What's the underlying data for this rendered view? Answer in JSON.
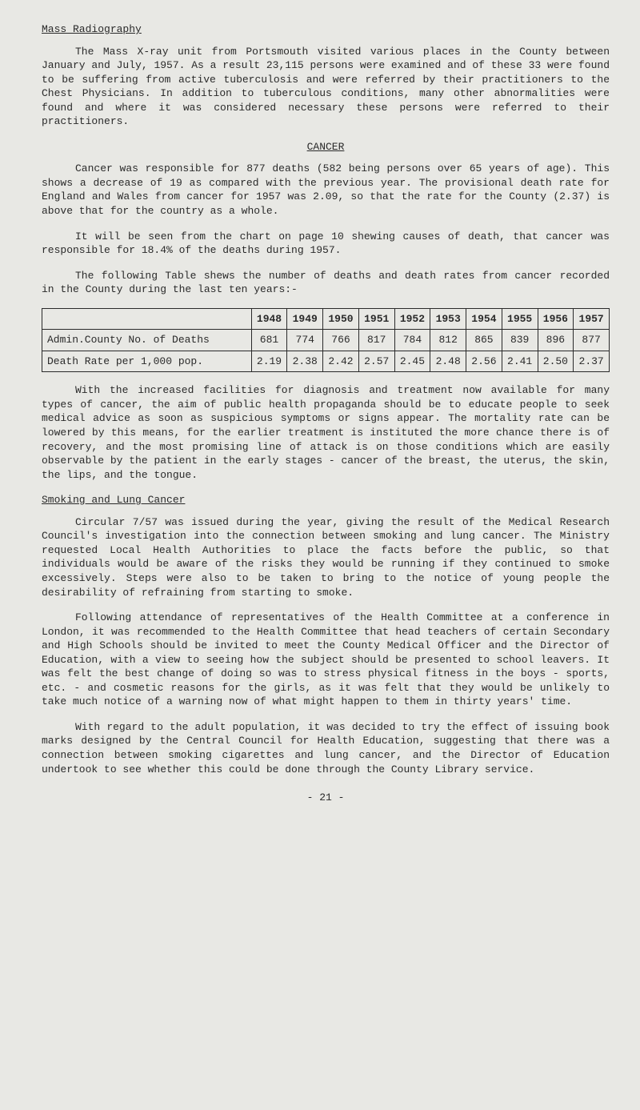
{
  "title1": "Mass Radiography",
  "para1": "The Mass X-ray unit from Portsmouth visited various places in the County between January and July, 1957. As a result 23,115 persons were examined and of these 33 were found to be suffering from active tuberculosis and were referred by their practitioners to the Chest Physicians. In addition to tuberculous conditions, many other abnormalities were found and where it was considered necessary these persons were referred to their practitioners.",
  "cancer_heading": "CANCER",
  "para2": "Cancer was responsible for 877 deaths (582 being persons over 65 years of age). This shows a decrease of 19 as compared with the previous year. The provisional death rate for England and Wales from cancer for 1957 was 2.09, so that the rate for the County (2.37) is above that for the country as a whole.",
  "para3": "It will be seen from the chart on page 10 shewing causes of death, that cancer was responsible for 18.4% of the deaths during 1957.",
  "para4": "The following Table shews the number of deaths and death rates from cancer recorded in the County during the last ten years:-",
  "table": {
    "years": [
      "1948",
      "1949",
      "1950",
      "1951",
      "1952",
      "1953",
      "1954",
      "1955",
      "1956",
      "1957"
    ],
    "row1_label": "Admin.County No. of Deaths",
    "row1": [
      "681",
      "774",
      "766",
      "817",
      "784",
      "812",
      "865",
      "839",
      "896",
      "877"
    ],
    "row2_label": "Death Rate per 1,000 pop.",
    "row2": [
      "2.19",
      "2.38",
      "2.42",
      "2.57",
      "2.45",
      "2.48",
      "2.56",
      "2.41",
      "2.50",
      "2.37"
    ]
  },
  "para5": "With the increased facilities for diagnosis and treatment now available for many types of cancer, the aim of public health propaganda should be to educate people to seek medical advice as soon as suspicious symptoms or signs appear. The mortality rate can be lowered by this means, for the earlier treatment is instituted the more chance there is of recovery, and the most promising line of attack is on those conditions which are easily observable by the patient in the early stages - cancer of the breast, the uterus, the skin, the lips, and the tongue.",
  "title2": "Smoking and Lung Cancer",
  "para6": "Circular 7/57 was issued during the year, giving the result of the Medical Research Council's investigation into the connection between smoking and lung cancer. The Ministry requested Local Health Authorities to place the facts before the public, so that individuals would be aware of the risks they would be running if they continued to smoke excessively. Steps were also to be taken to bring to the notice of young people the desirability of refraining from starting to smoke.",
  "para7": "Following attendance of representatives of the Health Committee at a conference in London, it was recommended to the Health Committee that head teachers of certain Secondary and High Schools should be invited to meet the County Medical Officer and the Director of Education, with a view to seeing how the subject should be presented to school leavers. It was felt the best change of doing so was to stress physical fitness in the boys - sports, etc. - and cosmetic reasons for the girls, as it was felt that they would be unlikely to take much notice of a warning now of what might happen to them in thirty years' time.",
  "para8": "With regard to the adult population, it was decided to try the effect of issuing book marks designed by the Central Council for Health Education, suggesting that there was a connection between smoking cigarettes and lung cancer, and the Director of Education undertook to see whether this could be done through the County Library service.",
  "pagenum": "- 21 -"
}
